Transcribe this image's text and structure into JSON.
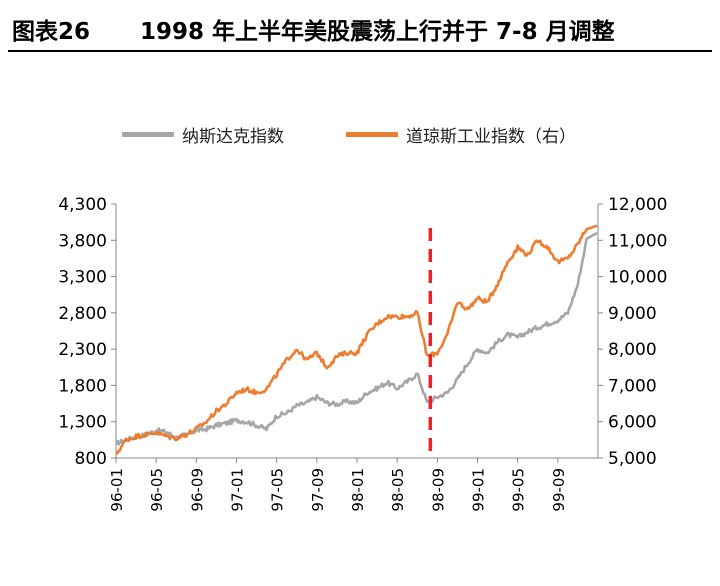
{
  "header": {
    "figure_number": "图表26",
    "title": "1998 年上半年美股震荡上行并于 7-8 月调整"
  },
  "chart_data": {
    "type": "line",
    "title": "1998 年上半年美股震荡上行并于 7-8 月调整",
    "legend_position": "top-center",
    "grid": false,
    "x_tick_labels": [
      "96-01",
      "96-05",
      "96-09",
      "97-01",
      "97-05",
      "97-09",
      "98-01",
      "98-05",
      "98-09",
      "99-01",
      "99-05",
      "99-09"
    ],
    "x_range": [
      "96-01",
      "99-12"
    ],
    "y_left": {
      "ticks": [
        "4,300",
        "3,800",
        "3,300",
        "2,800",
        "2,300",
        "1,800",
        "1,300",
        "800"
      ],
      "range": [
        800,
        4300
      ]
    },
    "y_right": {
      "ticks": [
        "12,000",
        "11,000",
        "10,000",
        "9,000",
        "8,000",
        "7,000",
        "6,000",
        "5,000"
      ],
      "range": [
        5000,
        12000
      ]
    },
    "marker": {
      "label": "98-08",
      "color": "#e8242a",
      "style": "dashed-vertical"
    },
    "series": [
      {
        "name": "纳斯达克指数",
        "axis": "left",
        "color": "#a6a6a6",
        "x": [
          "96-01",
          "96-02",
          "96-03",
          "96-04",
          "96-05",
          "96-06",
          "96-07",
          "96-08",
          "96-09",
          "96-10",
          "96-11",
          "96-12",
          "97-01",
          "97-02",
          "97-03",
          "97-04",
          "97-05",
          "97-06",
          "97-07",
          "97-08",
          "97-09",
          "97-10",
          "97-11",
          "97-12",
          "98-01",
          "98-02",
          "98-03",
          "98-04",
          "98-05",
          "98-06",
          "98-07",
          "98-08",
          "98-09",
          "98-10",
          "98-11",
          "98-12",
          "99-01",
          "99-02",
          "99-03",
          "99-04",
          "99-05",
          "99-06",
          "99-07",
          "99-08",
          "99-09",
          "99-10",
          "99-11",
          "99-12"
        ],
        "values": [
          1000,
          1050,
          1090,
          1120,
          1180,
          1160,
          1080,
          1120,
          1180,
          1200,
          1250,
          1280,
          1320,
          1300,
          1250,
          1200,
          1380,
          1420,
          1520,
          1560,
          1640,
          1560,
          1540,
          1580,
          1560,
          1700,
          1760,
          1840,
          1760,
          1850,
          1960,
          1560,
          1640,
          1700,
          1880,
          2100,
          2300,
          2250,
          2400,
          2500,
          2460,
          2540,
          2600,
          2650,
          2700,
          2800,
          3200,
          3900
        ]
      },
      {
        "name": "道琼斯工业指数（右）",
        "axis": "right",
        "color": "#ed7d31",
        "x": [
          "96-01",
          "96-02",
          "96-03",
          "96-04",
          "96-05",
          "96-06",
          "96-07",
          "96-08",
          "96-09",
          "96-10",
          "96-11",
          "96-12",
          "97-01",
          "97-02",
          "97-03",
          "97-04",
          "97-05",
          "97-06",
          "97-07",
          "97-08",
          "97-09",
          "97-10",
          "97-11",
          "97-12",
          "98-01",
          "98-02",
          "98-03",
          "98-04",
          "98-05",
          "98-06",
          "98-07",
          "98-08",
          "98-09",
          "98-10",
          "98-11",
          "98-12",
          "99-01",
          "99-02",
          "99-03",
          "99-04",
          "99-05",
          "99-06",
          "99-07",
          "99-08",
          "99-09",
          "99-10",
          "99-11",
          "99-12"
        ],
        "values": [
          5100,
          5500,
          5600,
          5650,
          5700,
          5600,
          5550,
          5650,
          5800,
          6000,
          6300,
          6500,
          6800,
          6900,
          6800,
          6900,
          7300,
          7700,
          8000,
          7700,
          7900,
          7500,
          7800,
          7900,
          7900,
          8400,
          8700,
          8900,
          8900,
          8900,
          9000,
          7800,
          7900,
          8400,
          9300,
          9100,
          9400,
          9300,
          9800,
          10400,
          10800,
          10600,
          11000,
          10800,
          10400,
          10500,
          10900,
          11400
        ]
      }
    ]
  }
}
